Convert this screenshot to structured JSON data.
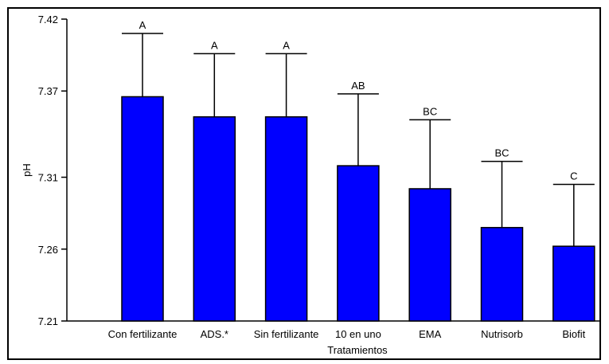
{
  "chart_data": {
    "type": "bar",
    "title": "",
    "xlabel": "Tratamientos",
    "ylabel": "pH",
    "ylim": [
      7.21,
      7.42
    ],
    "yticks": [
      "7.21",
      "7.26",
      "7.31",
      "7.37",
      "7.42"
    ],
    "ytick_values": [
      7.21,
      7.26,
      7.31,
      7.37,
      7.42
    ],
    "categories": [
      "Con fertilizante",
      "ADS.*",
      "Sin fertilizante",
      "10 en uno",
      "EMA",
      "Nutrisorb",
      "Biofit"
    ],
    "values": [
      7.366,
      7.352,
      7.352,
      7.318,
      7.302,
      7.275,
      7.262
    ],
    "error_upper": [
      7.41,
      7.396,
      7.396,
      7.368,
      7.35,
      7.321,
      7.305
    ],
    "significance": [
      "A",
      "A",
      "A",
      "AB",
      "BC",
      "BC",
      "C"
    ],
    "bar_color": "#0000ff",
    "grid": false
  }
}
